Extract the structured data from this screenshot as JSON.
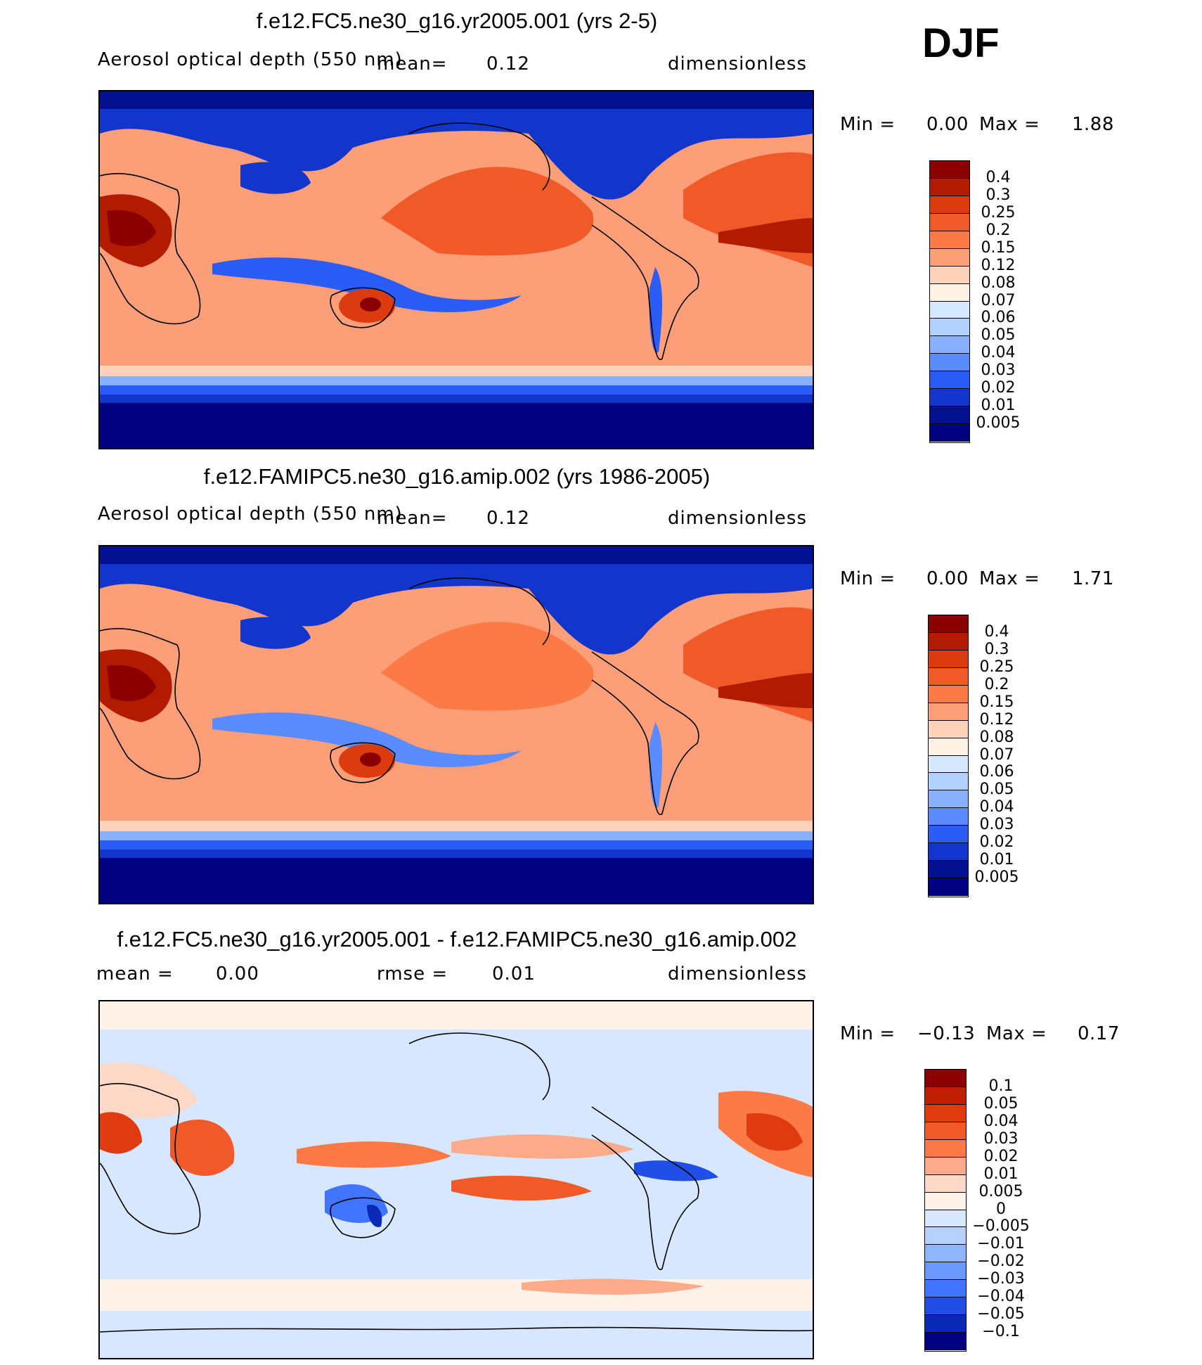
{
  "season": "DJF",
  "chart_data": [
    {
      "type": "heatmap",
      "title": "f.e12.FC5.ne30_g16.yr2005.001 (yrs 2-5)",
      "variable": "Aerosol optical depth (550 nm)",
      "mean_text": "mean=",
      "mean_value": "0.12",
      "units": "dimensionless",
      "min_label": "Min =",
      "min_value": "0.00",
      "max_label": "Max =",
      "max_value": "1.88",
      "levels": [
        "0.4",
        "0.3",
        "0.25",
        "0.2",
        "0.15",
        "0.12",
        "0.08",
        "0.07",
        "0.06",
        "0.05",
        "0.04",
        "0.03",
        "0.02",
        "0.01",
        "0.005"
      ]
    },
    {
      "type": "heatmap",
      "title": "f.e12.FAMIPC5.ne30_g16.amip.002 (yrs 1986-2005)",
      "variable": "Aerosol optical depth (550 nm)",
      "mean_text": "mean=",
      "mean_value": "0.12",
      "units": "dimensionless",
      "min_label": "Min =",
      "min_value": "0.00",
      "max_label": "Max =",
      "max_value": "1.71",
      "levels": [
        "0.4",
        "0.3",
        "0.25",
        "0.2",
        "0.15",
        "0.12",
        "0.08",
        "0.07",
        "0.06",
        "0.05",
        "0.04",
        "0.03",
        "0.02",
        "0.01",
        "0.005"
      ]
    },
    {
      "type": "heatmap",
      "title": "f.e12.FC5.ne30_g16.yr2005.001 - f.e12.FAMIPC5.ne30_g16.amip.002",
      "mean_text": "mean =",
      "mean_value": "0.00",
      "rmse_text": "rmse =",
      "rmse_value": "0.01",
      "units": "dimensionless",
      "min_label": "Min =",
      "min_value": "−0.13",
      "max_label": "Max =",
      "max_value": "0.17",
      "levels": [
        "0.1",
        "0.05",
        "0.04",
        "0.03",
        "0.02",
        "0.01",
        "0.005",
        "0",
        "−0.005",
        "−0.01",
        "−0.02",
        "−0.03",
        "−0.04",
        "−0.05",
        "−0.1"
      ]
    }
  ],
  "colors": {
    "abs_scale": [
      "#8b0000",
      "#b31b00",
      "#dc3b0f",
      "#f05a28",
      "#fb7a46",
      "#fc9e78",
      "#fdd2bb",
      "#fff2e5",
      "#d6e8ff",
      "#b3d1ff",
      "#88b0ff",
      "#5a8cff",
      "#2b5cf5",
      "#1235cc",
      "#03108f",
      "#000080"
    ],
    "diff_scale": [
      "#8b0000",
      "#c01e00",
      "#e03b10",
      "#f05a28",
      "#fb7a46",
      "#fcab8a",
      "#fdd8c6",
      "#fff2e8",
      "#d7e7ff",
      "#b6d0ff",
      "#8fb5ff",
      "#6a9aff",
      "#4275ff",
      "#1f4fe6",
      "#0a2ab5",
      "#000080"
    ]
  }
}
